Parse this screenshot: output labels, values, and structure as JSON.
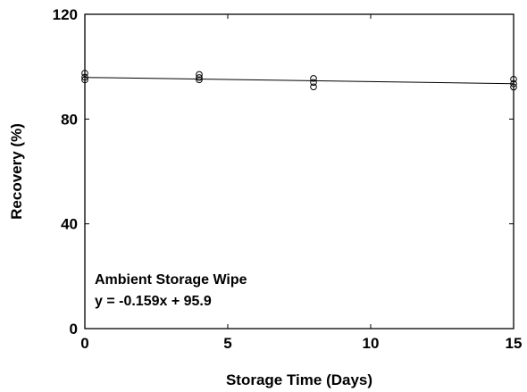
{
  "chart_data": {
    "type": "scatter",
    "xlabel": "Storage Time (Days)",
    "ylabel": "Recovery (%)",
    "xlim": [
      0,
      15
    ],
    "ylim": [
      0,
      120
    ],
    "x_ticks": [
      0,
      5,
      10,
      15
    ],
    "y_ticks": [
      0,
      40,
      80,
      120
    ],
    "grid": false,
    "points": [
      {
        "x": 0,
        "y": 97.5
      },
      {
        "x": 0,
        "y": 96.0
      },
      {
        "x": 0,
        "y": 95.0
      },
      {
        "x": 4,
        "y": 97.0
      },
      {
        "x": 4,
        "y": 95.8
      },
      {
        "x": 4,
        "y": 95.0
      },
      {
        "x": 8,
        "y": 95.5
      },
      {
        "x": 8,
        "y": 94.0
      },
      {
        "x": 8,
        "y": 92.3
      },
      {
        "x": 15,
        "y": 95.2
      },
      {
        "x": 15,
        "y": 93.5
      },
      {
        "x": 15,
        "y": 92.2
      }
    ],
    "fit": {
      "slope": -0.159,
      "intercept": 95.9
    },
    "annotations": [
      "Ambient Storage Wipe",
      "y = -0.159x + 95.9"
    ]
  }
}
